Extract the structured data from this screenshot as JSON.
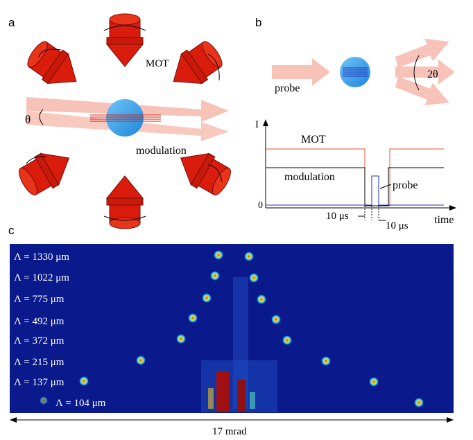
{
  "panels": {
    "a": {
      "label": "a",
      "mot_label": "MOT",
      "angle_label": "θ",
      "modulation_label": "modulation"
    },
    "b": {
      "label": "b",
      "probe_label": "probe",
      "angle_label": "2θ"
    },
    "timing": {
      "y_axis_label": "I",
      "x_axis_label": "time",
      "zero_label": "0",
      "traces": [
        {
          "name": "MOT",
          "color": "#e8512e"
        },
        {
          "name": "modulation",
          "color": "#000000"
        },
        {
          "name": "probe",
          "color": "#1c2fb8"
        }
      ],
      "interval_1": "10 μs",
      "interval_2": "10 μs"
    },
    "c": {
      "label": "c",
      "scale_label": "17 mrad",
      "background_color": "#0a1a8c",
      "periods": [
        "Λ = 1330 μm",
        "Λ = 1022 μm",
        "Λ = 775 μm",
        "Λ = 492 μm",
        "Λ = 372 μm",
        "Λ = 215 μm",
        "Λ = 137 μm",
        "Λ = 104 μm"
      ]
    }
  },
  "colors": {
    "mot_beam": "#d91c0c",
    "probe_beam": "#f7c3b8",
    "atom_cloud": "#2d9ae8"
  }
}
